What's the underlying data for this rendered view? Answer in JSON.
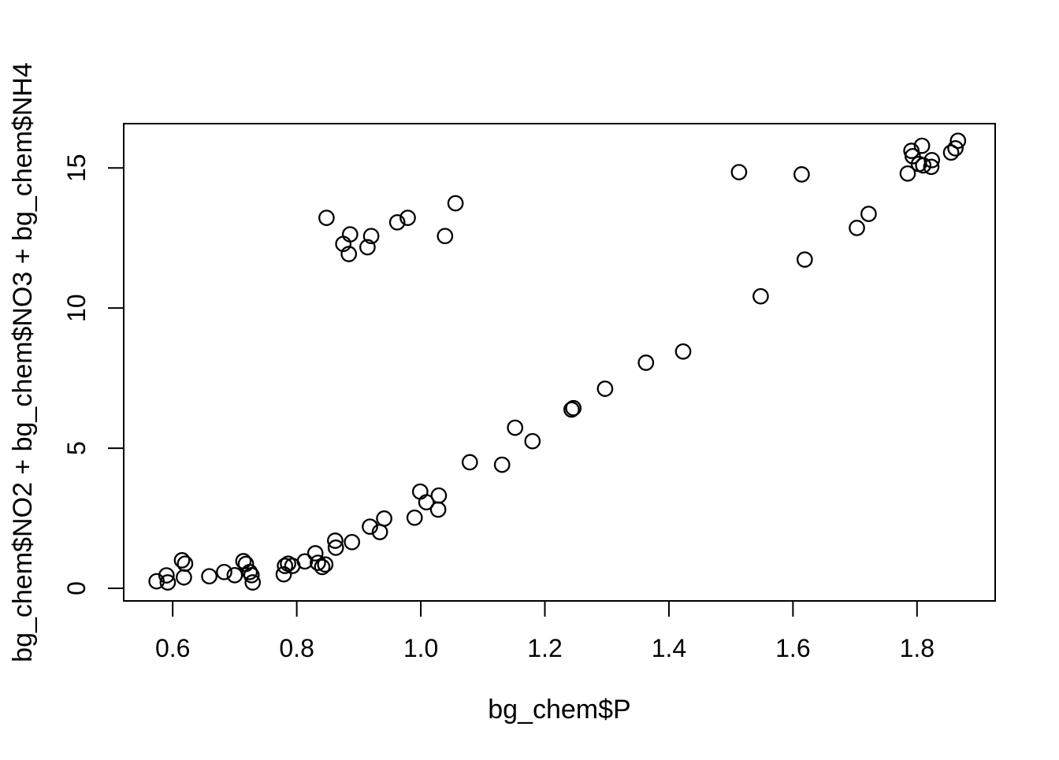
{
  "chart_data": {
    "type": "scatter",
    "title": "",
    "xlabel": "bg_chem$P",
    "ylabel": "bg_chem$NO2 + bg_chem$NO3 + bg_chem$NH4",
    "xlim": [
      0.521,
      1.926
    ],
    "ylim": [
      -0.45,
      16.58
    ],
    "x_ticks": {
      "values": [
        0.6,
        0.8,
        1.0,
        1.2,
        1.4,
        1.6,
        1.8
      ],
      "labels": [
        "0.6",
        "0.8",
        "1.0",
        "1.2",
        "1.4",
        "1.6",
        "1.8"
      ]
    },
    "y_ticks": {
      "values": [
        0,
        5,
        10,
        15
      ],
      "labels": [
        "0",
        "5",
        "10",
        "15"
      ]
    },
    "grid": false,
    "legend": "none",
    "marker": "open-circle",
    "colors": {
      "foreground": "#000000",
      "background": "#ffffff"
    },
    "points": [
      [
        0.574,
        0.25
      ],
      [
        0.59,
        0.46
      ],
      [
        0.592,
        0.21
      ],
      [
        0.615,
        1.0
      ],
      [
        0.62,
        0.88
      ],
      [
        0.618,
        0.39
      ],
      [
        0.659,
        0.43
      ],
      [
        0.683,
        0.58
      ],
      [
        0.7,
        0.47
      ],
      [
        0.714,
        0.97
      ],
      [
        0.718,
        0.87
      ],
      [
        0.724,
        0.58
      ],
      [
        0.727,
        0.47
      ],
      [
        0.729,
        0.21
      ],
      [
        0.779,
        0.5
      ],
      [
        0.781,
        0.8
      ],
      [
        0.786,
        0.88
      ],
      [
        0.793,
        0.8
      ],
      [
        0.813,
        0.96
      ],
      [
        0.83,
        1.25
      ],
      [
        0.834,
        0.91
      ],
      [
        0.841,
        0.76
      ],
      [
        0.846,
        0.85
      ],
      [
        0.862,
        1.7
      ],
      [
        0.863,
        1.45
      ],
      [
        0.889,
        1.65
      ],
      [
        0.918,
        2.2
      ],
      [
        0.934,
        2.01
      ],
      [
        0.941,
        2.49
      ],
      [
        0.99,
        2.52
      ],
      [
        0.999,
        3.45
      ],
      [
        1.009,
        3.07
      ],
      [
        1.029,
        3.31
      ],
      [
        1.028,
        2.81
      ],
      [
        1.079,
        4.5
      ],
      [
        1.131,
        4.41
      ],
      [
        1.152,
        5.73
      ],
      [
        1.18,
        5.25
      ],
      [
        1.243,
        6.38
      ],
      [
        1.246,
        6.43
      ],
      [
        1.297,
        7.12
      ],
      [
        1.363,
        8.05
      ],
      [
        1.423,
        8.45
      ],
      [
        1.513,
        14.85
      ],
      [
        1.548,
        10.42
      ],
      [
        1.614,
        14.77
      ],
      [
        1.619,
        11.73
      ],
      [
        1.703,
        12.86
      ],
      [
        1.722,
        13.36
      ],
      [
        0.848,
        13.22
      ],
      [
        0.875,
        12.29
      ],
      [
        0.884,
        11.93
      ],
      [
        0.886,
        12.63
      ],
      [
        0.914,
        12.17
      ],
      [
        0.92,
        12.57
      ],
      [
        0.962,
        13.06
      ],
      [
        0.979,
        13.22
      ],
      [
        1.039,
        12.57
      ],
      [
        1.056,
        13.74
      ],
      [
        1.785,
        14.8
      ],
      [
        1.791,
        15.61
      ],
      [
        1.793,
        15.42
      ],
      [
        1.803,
        15.14
      ],
      [
        1.808,
        15.79
      ],
      [
        1.81,
        15.09
      ],
      [
        1.823,
        15.04
      ],
      [
        1.824,
        15.28
      ],
      [
        1.855,
        15.55
      ],
      [
        1.862,
        15.7
      ],
      [
        1.866,
        15.97
      ]
    ]
  }
}
